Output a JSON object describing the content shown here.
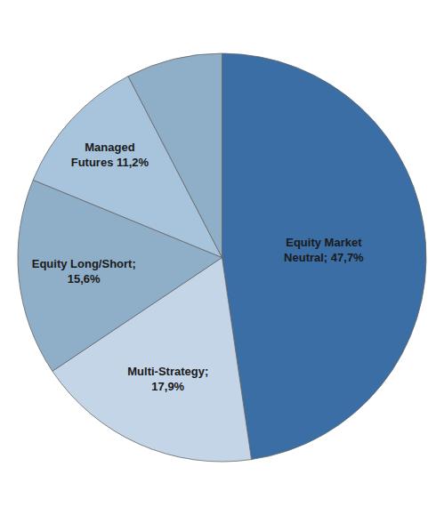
{
  "chart_data": {
    "type": "pie",
    "categories": [
      "Equity Market\nNeutral; 47,7%",
      "Multi-Strategy;\n17,9%",
      "Equity Long/Short;\n15,6%",
      "Managed\nFutures 11,2%",
      null
    ],
    "values": [
      47.7,
      17.9,
      15.6,
      11.2,
      7.6
    ],
    "colors": [
      "#3A6EA5",
      "#C5D5E8",
      "#8FAEC8",
      "#A8C4DC",
      "#8FAEC8"
    ]
  }
}
